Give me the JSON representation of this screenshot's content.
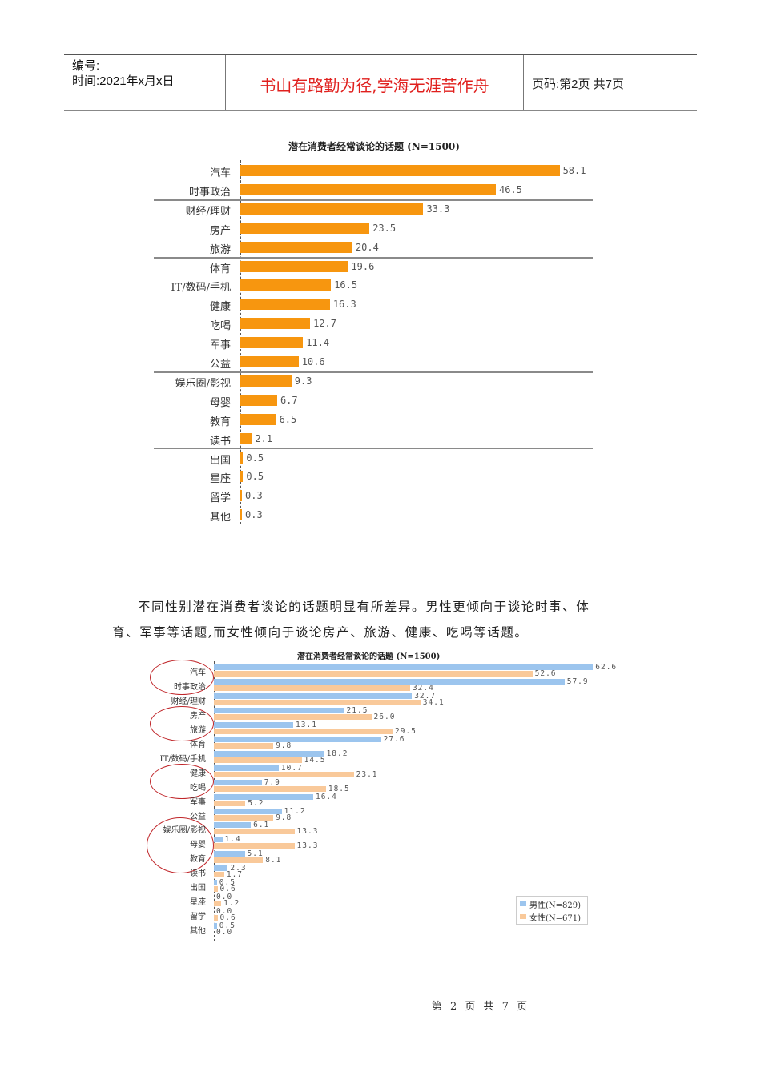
{
  "header": {
    "number_label": "编号:",
    "date_label": "时间:2021年x月x日",
    "motto": "书山有路勤为径,学海无涯苦作舟",
    "page_info": "页码:第2页 共7页"
  },
  "paragraph": {
    "line1": "不同性别潜在消费者谈论的话题明显有所差异。男性更倾向于谈论时事、体",
    "line2": "育、军事等话题,而女性倾向于谈论房产、旅游、健康、吃喝等话题。"
  },
  "footer": {
    "page_text": "第 2 页 共 7 页"
  },
  "colors": {
    "orange": "#f7960f",
    "male_blue": "#9cc5ee",
    "female_peach": "#f9c99a",
    "annotation_red": "#c0262a"
  },
  "chart_data": [
    {
      "type": "bar",
      "orientation": "horizontal",
      "title": "潜在消费者经常谈论的话题 (N=1500)",
      "categories": [
        "汽车",
        "时事政治",
        "财经/理财",
        "房产",
        "旅游",
        "体育",
        "IT/数码/手机",
        "健康",
        "吃喝",
        "军事",
        "公益",
        "娱乐圈/影视",
        "母婴",
        "教育",
        "读书",
        "出国",
        "星座",
        "留学",
        "其他"
      ],
      "values": [
        58.1,
        46.5,
        33.3,
        23.5,
        20.4,
        19.6,
        16.5,
        16.3,
        12.7,
        11.4,
        10.6,
        9.3,
        6.7,
        6.5,
        2.1,
        0.5,
        0.5,
        0.3,
        0.3
      ],
      "value_labels": [
        "58.1",
        "46.5",
        "33.3",
        "23.5",
        "20.4",
        "19.6",
        "16.5",
        "16.3",
        "12.7",
        "11.4",
        "10.6",
        "9.3",
        "6.7",
        "6.5",
        "2.1",
        "0.5",
        "0.5",
        "0.3",
        "0.3"
      ],
      "group_separators_after": [
        "时事政治",
        "旅游",
        "公益",
        "读书"
      ],
      "xlabel": "",
      "ylabel": "",
      "grid": false,
      "legend": null
    },
    {
      "type": "bar",
      "orientation": "horizontal",
      "title": "潜在消费者经常谈论的话题 (N=1500)",
      "categories": [
        "汽车",
        "时事政治",
        "财经/理财",
        "房产",
        "旅游",
        "体育",
        "IT/数码/手机",
        "健康",
        "吃喝",
        "军事",
        "公益",
        "娱乐圈/影视",
        "母婴",
        "教育",
        "读书",
        "出国",
        "星座",
        "留学",
        "其他"
      ],
      "series": [
        {
          "name": "男性(N=829)",
          "values": [
            62.6,
            57.9,
            32.7,
            21.5,
            13.1,
            27.6,
            18.2,
            10.7,
            7.9,
            16.4,
            11.2,
            6.1,
            1.4,
            5.1,
            2.3,
            0.5,
            0.0,
            0.0,
            0.5
          ],
          "value_labels": [
            "62.6",
            "57.9",
            "32.7",
            "21.5",
            "13.1",
            "27.6",
            "18.2",
            "10.7",
            "7.9",
            "16.4",
            "11.2",
            "6.1",
            "1.4",
            "5.1",
            "2.3",
            "0.5",
            "0.0",
            "0.0",
            "0.5"
          ]
        },
        {
          "name": "女性(N=671)",
          "values": [
            52.6,
            32.4,
            34.1,
            26.0,
            29.5,
            9.8,
            14.5,
            23.1,
            18.5,
            5.2,
            9.8,
            13.3,
            13.3,
            8.1,
            1.7,
            0.6,
            1.2,
            0.6,
            0.0
          ],
          "value_labels": [
            "52.6",
            "32.4",
            "34.1",
            "26.0",
            "29.5",
            "9.8",
            "14.5",
            "23.1",
            "18.5",
            "5.2",
            "9.8",
            "13.3",
            "13.3",
            "8.1",
            "1.7",
            "0.6",
            "1.2",
            "0.6",
            "0.0"
          ]
        }
      ],
      "annotations": [
        "circle: 汽车/时事政治",
        "circle: 房产/旅游",
        "circle: 健康/吃喝",
        "circle: 娱乐圈/影视/母婴/教育"
      ],
      "legend_position": "bottom-right",
      "xlabel": "",
      "ylabel": "",
      "grid": false
    }
  ]
}
